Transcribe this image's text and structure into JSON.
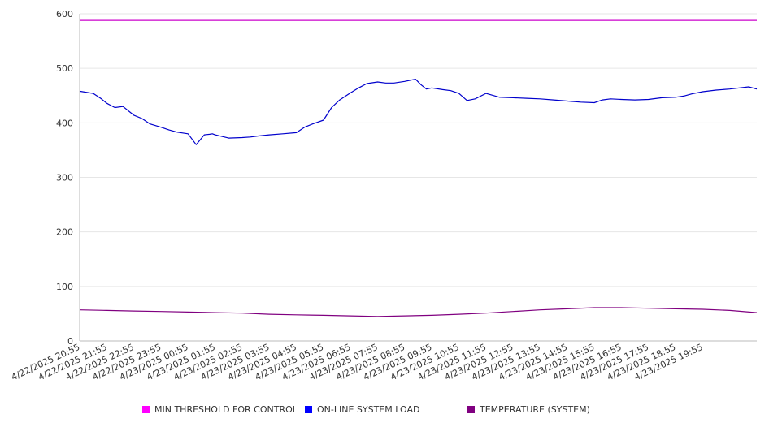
{
  "chart_data": {
    "type": "line",
    "title": "",
    "xlabel": "",
    "ylabel": "",
    "ylim": [
      0,
      600
    ],
    "yticks": [
      "0",
      "100",
      "200",
      "300",
      "400",
      "500",
      "600"
    ],
    "grid": "horizontal",
    "legend_position": "bottom",
    "x_tick_labels": [
      "4/22/2025 20:55",
      "4/22/2025 21:55",
      "4/22/2025 22:55",
      "4/22/2025 23:55",
      "4/23/2025 00:55",
      "4/23/2025 01:55",
      "4/23/2025 02:55",
      "4/23/2025 03:55",
      "4/23/2025 04:55",
      "4/23/2025 05:55",
      "4/23/2025 06:55",
      "4/23/2025 07:55",
      "4/23/2025 08:55",
      "4/23/2025 09:55",
      "4/23/2025 10:55",
      "4/23/2025 11:55",
      "4/23/2025 12:55",
      "4/23/2025 13:55",
      "4/23/2025 14:55",
      "4/23/2025 15:55",
      "4/23/2025 16:55",
      "4/23/2025 17:55",
      "4/23/2025 18:55",
      "4/23/2025 19:55"
    ],
    "series": [
      {
        "name": "MIN THRESHOLD FOR CONTROL",
        "color": "#cc00cc",
        "swatch": "#ff00ff",
        "hours": [
          0,
          25
        ],
        "values": [
          588,
          588
        ]
      },
      {
        "name": "ON-LINE SYSTEM LOAD",
        "color": "#0000cc",
        "swatch": "#0000ff",
        "hours": [
          0,
          0.5,
          0.8,
          1.0,
          1.3,
          1.6,
          2.0,
          2.3,
          2.6,
          3.0,
          3.3,
          3.6,
          4.0,
          4.3,
          4.6,
          4.8,
          4.9,
          5.0,
          5.5,
          6.0,
          6.3,
          6.6,
          7.0,
          7.5,
          8.0,
          8.3,
          8.6,
          9.0,
          9.3,
          9.6,
          10.0,
          10.3,
          10.6,
          11.0,
          11.3,
          11.6,
          12.0,
          12.4,
          12.6,
          12.8,
          13.0,
          13.4,
          13.7,
          14.0,
          14.3,
          14.6,
          15.0,
          15.5,
          16.0,
          16.5,
          17.0,
          17.5,
          18.0,
          18.5,
          19.0,
          19.3,
          19.6,
          20.0,
          20.5,
          21.0,
          21.5,
          22.0,
          22.3,
          22.6,
          23.0,
          23.5,
          24.0,
          24.7,
          25.0
        ],
        "values": [
          458,
          454,
          444,
          436,
          428,
          430,
          414,
          408,
          398,
          392,
          387,
          383,
          380,
          360,
          378,
          379,
          380,
          378,
          372,
          373,
          374,
          376,
          378,
          380,
          382,
          392,
          398,
          405,
          428,
          442,
          455,
          464,
          472,
          475,
          473,
          473,
          476,
          480,
          470,
          462,
          464,
          461,
          459,
          454,
          441,
          444,
          454,
          447,
          446,
          445,
          444,
          442,
          440,
          438,
          437,
          442,
          444,
          443,
          442,
          443,
          446,
          447,
          449,
          453,
          457,
          460,
          462,
          466,
          462
        ]
      },
      {
        "name": "TEMPERATURE (SYSTEM)",
        "color": "#800080",
        "swatch": "#800080",
        "hours": [
          0,
          1,
          2,
          3,
          4,
          5,
          6,
          7,
          8,
          9,
          10,
          11,
          12,
          13,
          14,
          15,
          16,
          17,
          18,
          19,
          20,
          21,
          22,
          23,
          24,
          25
        ],
        "values": [
          57,
          56,
          55,
          54,
          53,
          52,
          51,
          49,
          48,
          47,
          46,
          45,
          46,
          47,
          49,
          51,
          54,
          57,
          59,
          61,
          61,
          60,
          59,
          58,
          56,
          52
        ]
      }
    ]
  }
}
